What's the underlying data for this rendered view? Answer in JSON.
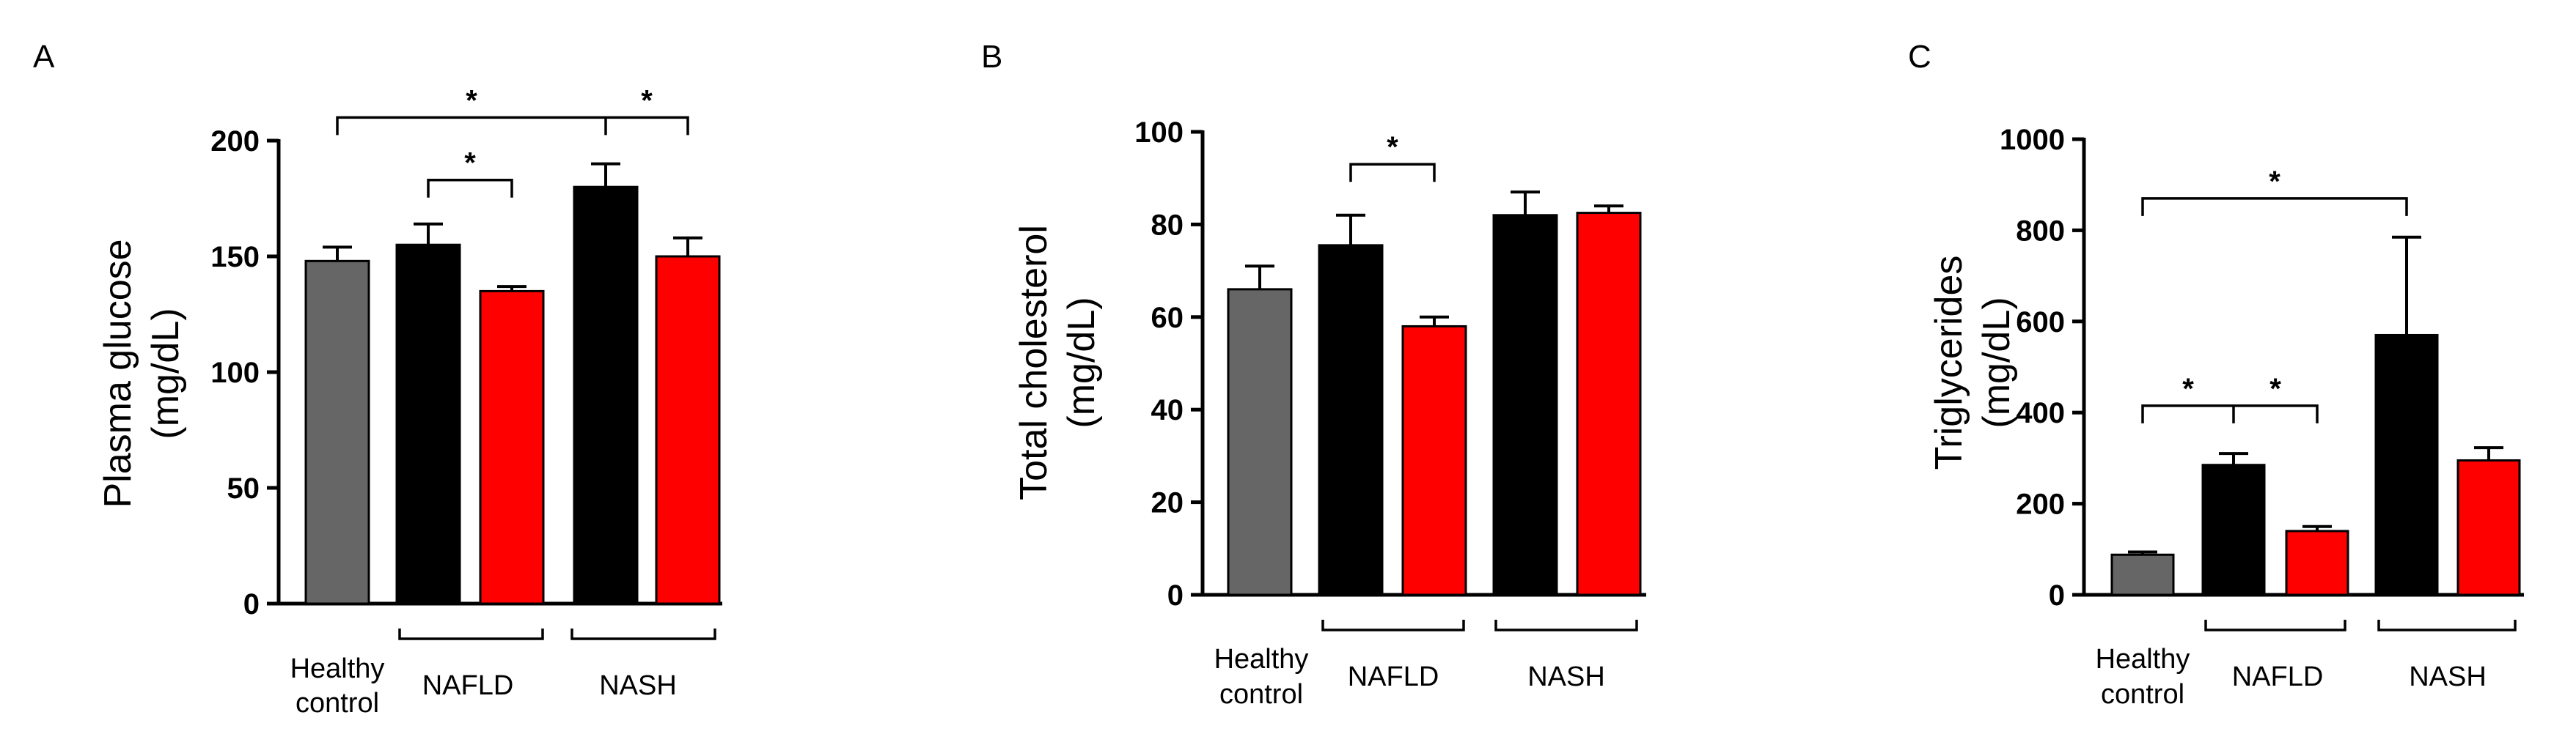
{
  "colors": {
    "healthy": "#666666",
    "pre": "#000000",
    "post": "#ff0000"
  },
  "chart_data": [
    {
      "type": "bar",
      "panel": "A",
      "ylabel_line1": "Plasma glucose",
      "ylabel_line2": "(mg/dL)",
      "ylim": [
        0,
        200
      ],
      "yticks": [
        0,
        50,
        100,
        150,
        200
      ],
      "bars": [
        {
          "label": "Healthy control",
          "value": 148,
          "error": 6,
          "color": "healthy"
        },
        {
          "label": "NAFLD",
          "value": 155,
          "error": 9,
          "color": "pre"
        },
        {
          "label": "NAFLD",
          "value": 135,
          "error": 2,
          "color": "post"
        },
        {
          "label": "NASH",
          "value": 180,
          "error": 10,
          "color": "pre"
        },
        {
          "label": "NASH",
          "value": 150,
          "error": 8,
          "color": "post"
        }
      ],
      "group_labels": {
        "healthy_line1": "Healthy",
        "healthy_line2": "control",
        "g1": "NAFLD",
        "g2": "NASH"
      },
      "significance": [
        {
          "from": 1,
          "to": 2,
          "y": 183,
          "label": "*"
        },
        {
          "from": 0,
          "to": 4,
          "mid": 3,
          "y": 210,
          "label_left": "*",
          "label_right": "*"
        }
      ]
    },
    {
      "type": "bar",
      "panel": "B",
      "ylabel_line1": "Total cholesterol",
      "ylabel_line2": "(mg/dL)",
      "ylim": [
        0,
        100
      ],
      "yticks": [
        0,
        20,
        40,
        60,
        80,
        100
      ],
      "bars": [
        {
          "label": "Healthy control",
          "value": 66,
          "error": 5,
          "color": "healthy"
        },
        {
          "label": "NAFLD",
          "value": 75.5,
          "error": 6.5,
          "color": "pre"
        },
        {
          "label": "NAFLD",
          "value": 58,
          "error": 2,
          "color": "post"
        },
        {
          "label": "NASH",
          "value": 82,
          "error": 5,
          "color": "pre"
        },
        {
          "label": "NASH",
          "value": 82.5,
          "error": 1.5,
          "color": "post"
        }
      ],
      "group_labels": {
        "healthy_line1": "Healthy",
        "healthy_line2": "control",
        "g1": "NAFLD",
        "g2": "NASH"
      },
      "significance": [
        {
          "from": 1,
          "to": 2,
          "y": 93,
          "label": "*"
        }
      ]
    },
    {
      "type": "bar",
      "panel": "C",
      "ylabel_line1": "Triglycerides",
      "ylabel_line2": "(mg/dL)",
      "ylim": [
        0,
        1000
      ],
      "yticks": [
        0,
        200,
        400,
        600,
        800,
        1000
      ],
      "bars": [
        {
          "label": "Healthy control",
          "value": 88,
          "error": 6,
          "color": "healthy"
        },
        {
          "label": "NAFLD",
          "value": 285,
          "error": 25,
          "color": "pre"
        },
        {
          "label": "NAFLD",
          "value": 140,
          "error": 10,
          "color": "post"
        },
        {
          "label": "NASH",
          "value": 570,
          "error": 215,
          "color": "pre"
        },
        {
          "label": "NASH",
          "value": 295,
          "error": 28,
          "color": "post"
        }
      ],
      "group_labels": {
        "healthy_line1": "Healthy",
        "healthy_line2": "control",
        "g1": "NAFLD",
        "g2": "NASH"
      },
      "significance": [
        {
          "from": 0,
          "to": 3,
          "y": 870,
          "label": "*"
        },
        {
          "from": 0,
          "to": 2,
          "mid": 1,
          "y": 415,
          "label_left": "*",
          "label_right": "*"
        }
      ]
    }
  ]
}
